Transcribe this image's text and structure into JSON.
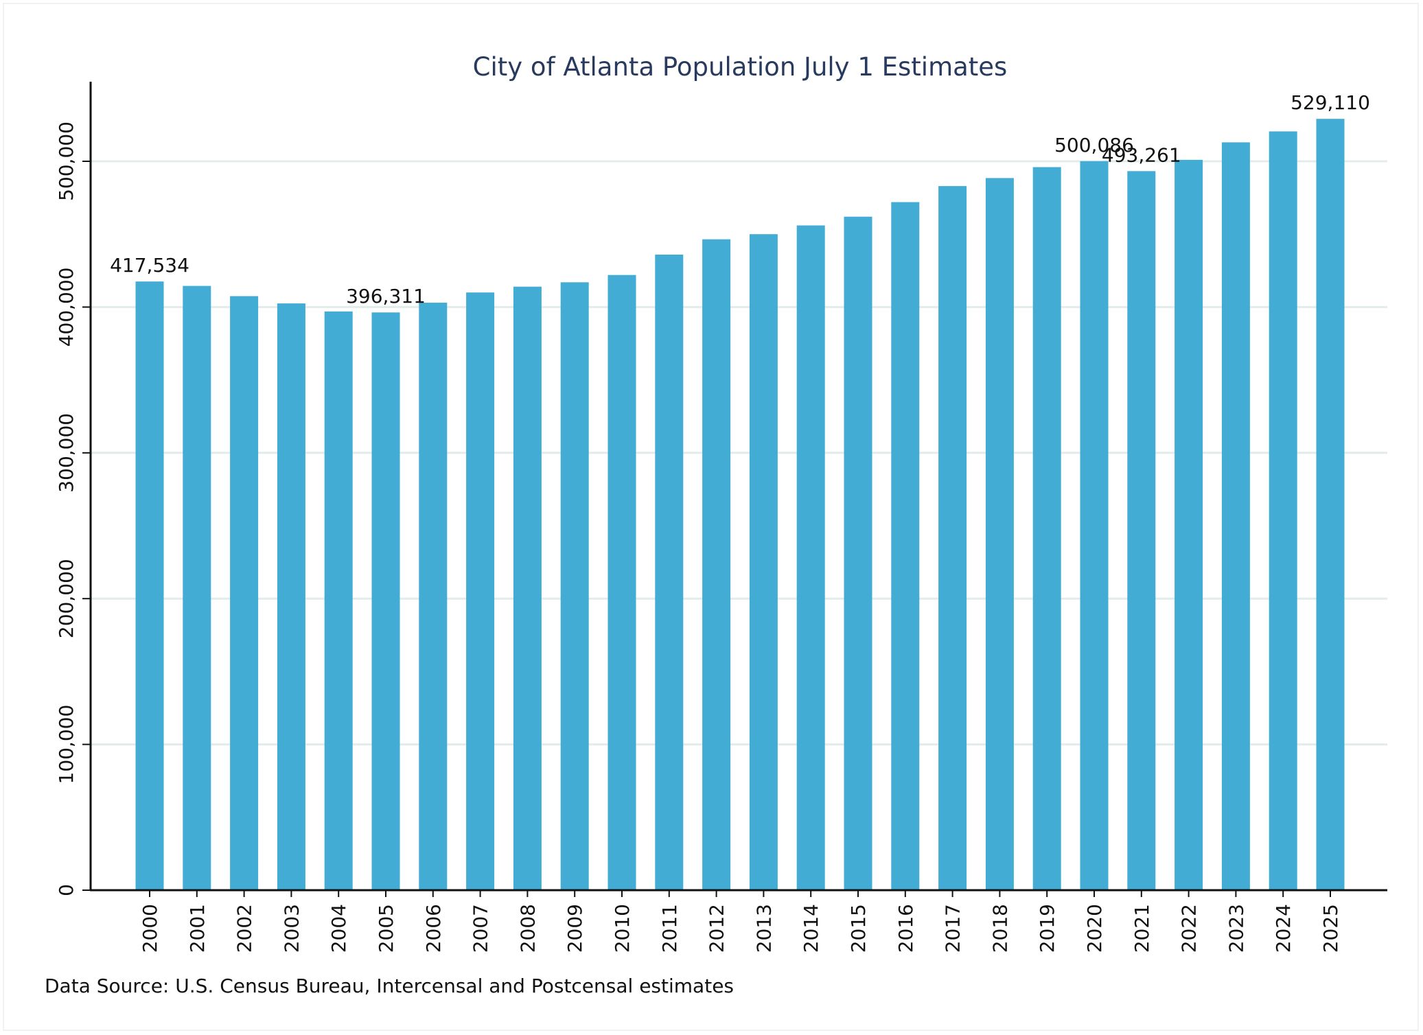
{
  "chart_data": {
    "type": "bar",
    "title": "City of Atlanta Population July 1 Estimates",
    "xlabel": "",
    "ylabel": "",
    "categories": [
      "2000",
      "2001",
      "2002",
      "2003",
      "2004",
      "2005",
      "2006",
      "2007",
      "2008",
      "2009",
      "2010",
      "2011",
      "2012",
      "2013",
      "2014",
      "2015",
      "2016",
      "2017",
      "2018",
      "2019",
      "2020",
      "2021",
      "2022",
      "2023",
      "2024",
      "2025"
    ],
    "values": [
      417534,
      414500,
      407500,
      402500,
      397000,
      396311,
      403000,
      410000,
      414000,
      417000,
      422000,
      436000,
      446500,
      450000,
      456000,
      462000,
      472000,
      483000,
      488500,
      496000,
      500086,
      493261,
      501000,
      513000,
      520500,
      529110
    ],
    "data_labels": [
      {
        "category": "2000",
        "text": "417,534"
      },
      {
        "category": "2005",
        "text": "396,311"
      },
      {
        "category": "2020",
        "text": "500,086"
      },
      {
        "category": "2021",
        "text": "493,261"
      },
      {
        "category": "2025",
        "text": "529,110"
      }
    ],
    "ylim": [
      0,
      550000
    ],
    "yticks": [
      0,
      100000,
      200000,
      300000,
      400000,
      500000
    ],
    "ytick_labels": [
      "0",
      "100,000",
      "200,000",
      "300,000",
      "400,000",
      "500,000"
    ],
    "grid": true,
    "bar_color": "#43acd5",
    "grid_color": "#e3ecec",
    "axis_color": "#111111",
    "source_note": "Data Source: U.S. Census Bureau, Intercensal and Postcensal estimates"
  }
}
